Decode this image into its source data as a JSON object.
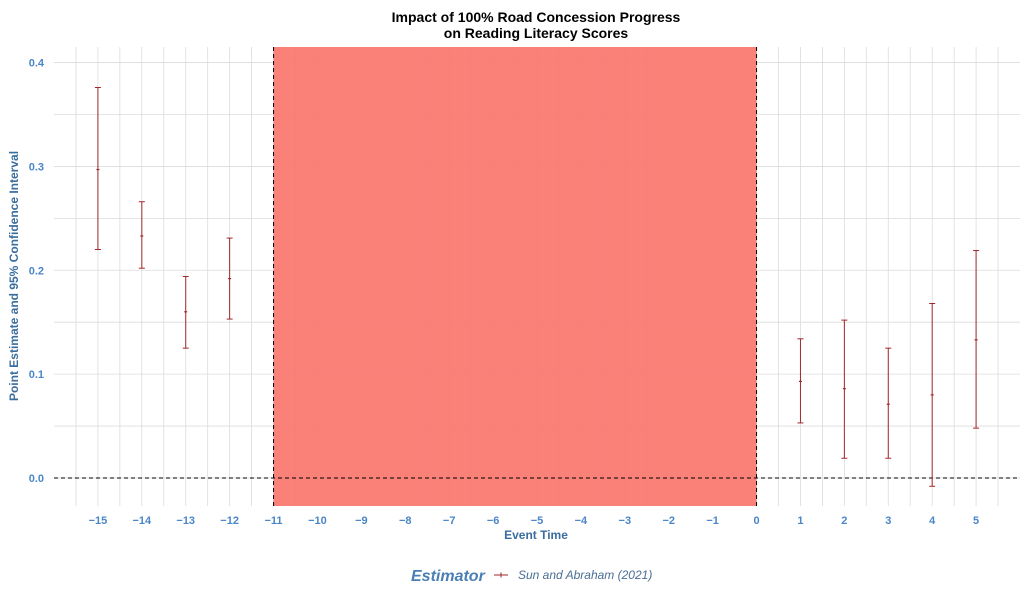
{
  "chart_data": {
    "type": "errorbar",
    "title_line1": "Impact of 100% Road Concession Progress",
    "title_line2": "on Reading Literacy Scores",
    "xlabel": "Event Time",
    "ylabel": "Point Estimate and 95% Confidence Interval",
    "xlim": [
      -16,
      6
    ],
    "ylim": [
      -0.027,
      0.415
    ],
    "x_ticks": [
      -15,
      -14,
      -13,
      -12,
      -11,
      -10,
      -9,
      -8,
      -7,
      -6,
      -5,
      -4,
      -3,
      -2,
      -1,
      0,
      1,
      2,
      3,
      4,
      5
    ],
    "y_ticks": [
      0.0,
      0.1,
      0.2,
      0.3,
      0.4
    ],
    "y_tick_labels": [
      "0.0",
      "0.1",
      "0.2",
      "0.3",
      "0.4"
    ],
    "grid": true,
    "shaded_region": {
      "x_start": -11,
      "x_end": 0,
      "color": "#f8766d"
    },
    "reference_hline": 0,
    "series": [
      {
        "name": "Sun and Abraham (2021)",
        "color": "#a0282a",
        "points": [
          {
            "x": -15,
            "estimate": 0.297,
            "lower": 0.22,
            "upper": 0.376
          },
          {
            "x": -14,
            "estimate": 0.233,
            "lower": 0.202,
            "upper": 0.266
          },
          {
            "x": -13,
            "estimate": 0.16,
            "lower": 0.125,
            "upper": 0.194
          },
          {
            "x": -12,
            "estimate": 0.192,
            "lower": 0.153,
            "upper": 0.231
          },
          {
            "x": 1,
            "estimate": 0.093,
            "lower": 0.053,
            "upper": 0.134
          },
          {
            "x": 2,
            "estimate": 0.086,
            "lower": 0.019,
            "upper": 0.152
          },
          {
            "x": 3,
            "estimate": 0.071,
            "lower": 0.019,
            "upper": 0.125
          },
          {
            "x": 4,
            "estimate": 0.08,
            "lower": -0.008,
            "upper": 0.168
          },
          {
            "x": 5,
            "estimate": 0.133,
            "lower": 0.048,
            "upper": 0.219
          }
        ]
      }
    ],
    "legend": {
      "title": "Estimator",
      "position": "bottom"
    }
  }
}
